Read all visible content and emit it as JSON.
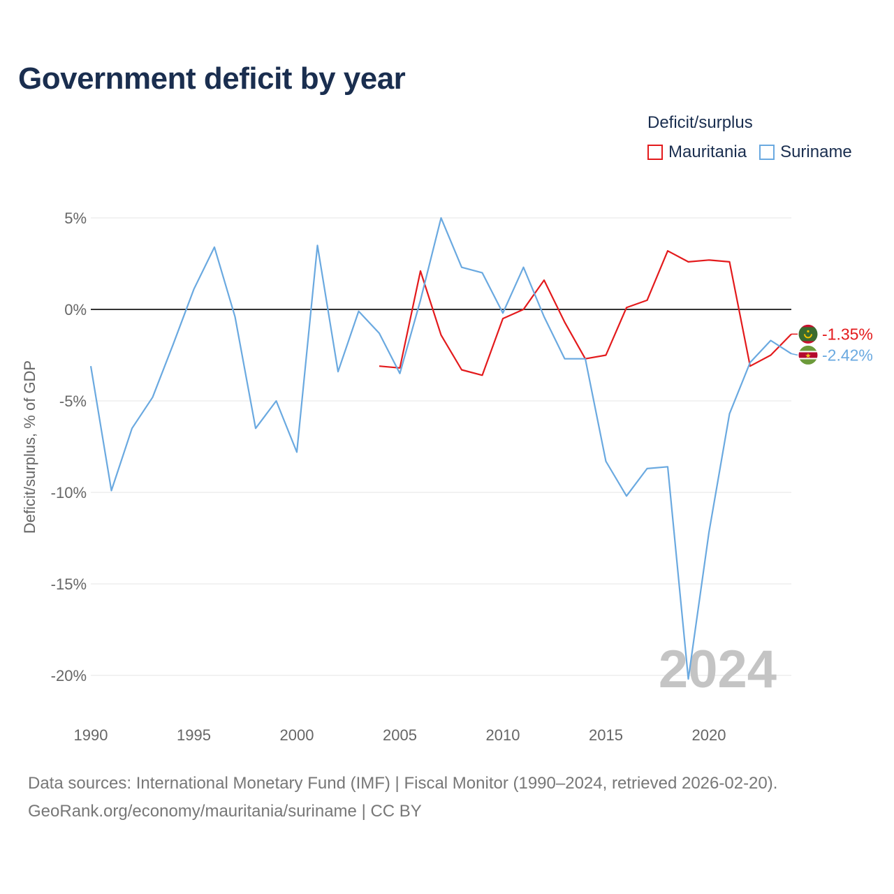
{
  "title": "Government deficit by year",
  "legend": {
    "title": "Deficit/surplus",
    "items": [
      {
        "name": "Mauritania",
        "color": "#e31a1c"
      },
      {
        "name": "Suriname",
        "color": "#6aa9e0"
      }
    ]
  },
  "chart_data": {
    "type": "line",
    "ylabel": "Deficit/surplus, % of GDP",
    "xlim": [
      1990,
      2024
    ],
    "ylim": [
      -20,
      5
    ],
    "yticks": [
      5,
      0,
      -5,
      -10,
      -15,
      -20
    ],
    "ytick_labels": [
      "5%",
      "0%",
      "-5%",
      "-10%",
      "-15%",
      "-20%"
    ],
    "xticks": [
      1990,
      1995,
      2000,
      2005,
      2010,
      2015,
      2020
    ],
    "xtick_labels": [
      "1990",
      "1995",
      "2000",
      "2005",
      "2010",
      "2015",
      "2020"
    ],
    "year_watermark": "2024",
    "series": [
      {
        "name": "Mauritania",
        "color": "#e31a1c",
        "end_label": "-1.35%",
        "x": [
          2004,
          2005,
          2006,
          2007,
          2008,
          2009,
          2010,
          2011,
          2012,
          2013,
          2014,
          2015,
          2016,
          2017,
          2018,
          2019,
          2020,
          2021,
          2022,
          2023,
          2024
        ],
        "values": [
          -3.1,
          -3.2,
          2.1,
          -1.4,
          -3.3,
          -3.6,
          -0.5,
          0.0,
          1.6,
          -0.7,
          -2.7,
          -2.5,
          0.1,
          0.5,
          3.2,
          2.6,
          2.7,
          2.6,
          -3.1,
          -2.5,
          -1.35
        ]
      },
      {
        "name": "Suriname",
        "color": "#6aa9e0",
        "end_label": "-2.42%",
        "x": [
          1990,
          1991,
          1992,
          1993,
          1994,
          1995,
          1996,
          1997,
          1998,
          1999,
          2000,
          2001,
          2002,
          2003,
          2004,
          2005,
          2006,
          2007,
          2008,
          2009,
          2010,
          2011,
          2012,
          2013,
          2014,
          2015,
          2016,
          2017,
          2018,
          2019,
          2020,
          2021,
          2022,
          2023,
          2024
        ],
        "values": [
          -3.1,
          -9.9,
          -6.5,
          -4.8,
          -1.9,
          1.1,
          3.4,
          -0.4,
          -6.5,
          -5.0,
          -7.8,
          3.5,
          -3.4,
          -0.1,
          -1.3,
          -3.5,
          0.5,
          5.0,
          2.3,
          2.0,
          -0.2,
          2.3,
          -0.4,
          -2.7,
          -2.7,
          -8.3,
          -10.2,
          -8.7,
          -8.6,
          -20.2,
          -12.2,
          -5.7,
          -2.9,
          -1.7,
          -2.42
        ]
      }
    ]
  },
  "source_line_1": "Data sources: International Monetary Fund (IMF) | Fiscal Monitor (1990–2024, retrieved 2026-02-20).",
  "source_line_2": "GeoRank.org/economy/mauritania/suriname | CC BY"
}
